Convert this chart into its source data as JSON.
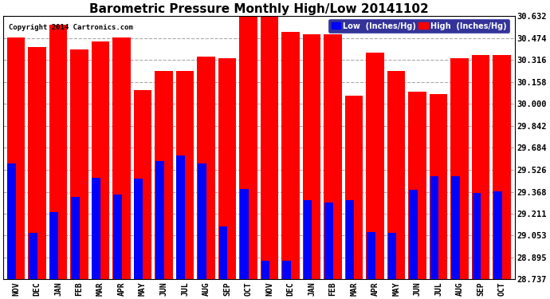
{
  "title": "Barometric Pressure Monthly High/Low 20141102",
  "copyright": "Copyright 2014 Cartronics.com",
  "months": [
    "NOV",
    "DEC",
    "JAN",
    "FEB",
    "MAR",
    "APR",
    "MAY",
    "JUN",
    "JUL",
    "AUG",
    "SEP",
    "OCT",
    "NOV",
    "DEC",
    "JAN",
    "FEB",
    "MAR",
    "APR",
    "MAY",
    "JUN",
    "JUL",
    "AUG",
    "SEP",
    "OCT"
  ],
  "high_values": [
    30.48,
    30.41,
    30.57,
    30.39,
    30.45,
    30.48,
    30.1,
    30.24,
    30.24,
    30.34,
    30.33,
    30.63,
    30.63,
    30.52,
    30.5,
    30.5,
    30.06,
    30.37,
    30.24,
    30.09,
    30.07,
    30.33,
    30.35,
    30.35
  ],
  "low_values": [
    29.57,
    29.07,
    29.22,
    29.33,
    29.47,
    29.35,
    29.46,
    29.59,
    29.63,
    29.57,
    29.12,
    29.39,
    28.87,
    28.87,
    29.31,
    29.29,
    29.31,
    29.08,
    29.07,
    29.38,
    29.48,
    29.48,
    29.36,
    29.37
  ],
  "y_ticks": [
    28.737,
    28.895,
    29.053,
    29.211,
    29.368,
    29.526,
    29.684,
    29.842,
    30.0,
    30.158,
    30.316,
    30.474,
    30.632
  ],
  "y_min": 28.737,
  "y_max": 30.632,
  "high_color": "#FF0000",
  "low_color": "#0000FF",
  "bg_color": "#FFFFFF",
  "grid_color": "#AAAAAA",
  "legend_text_low": "Low  (Inches/Hg)",
  "legend_text_high": "High  (Inches/Hg)"
}
